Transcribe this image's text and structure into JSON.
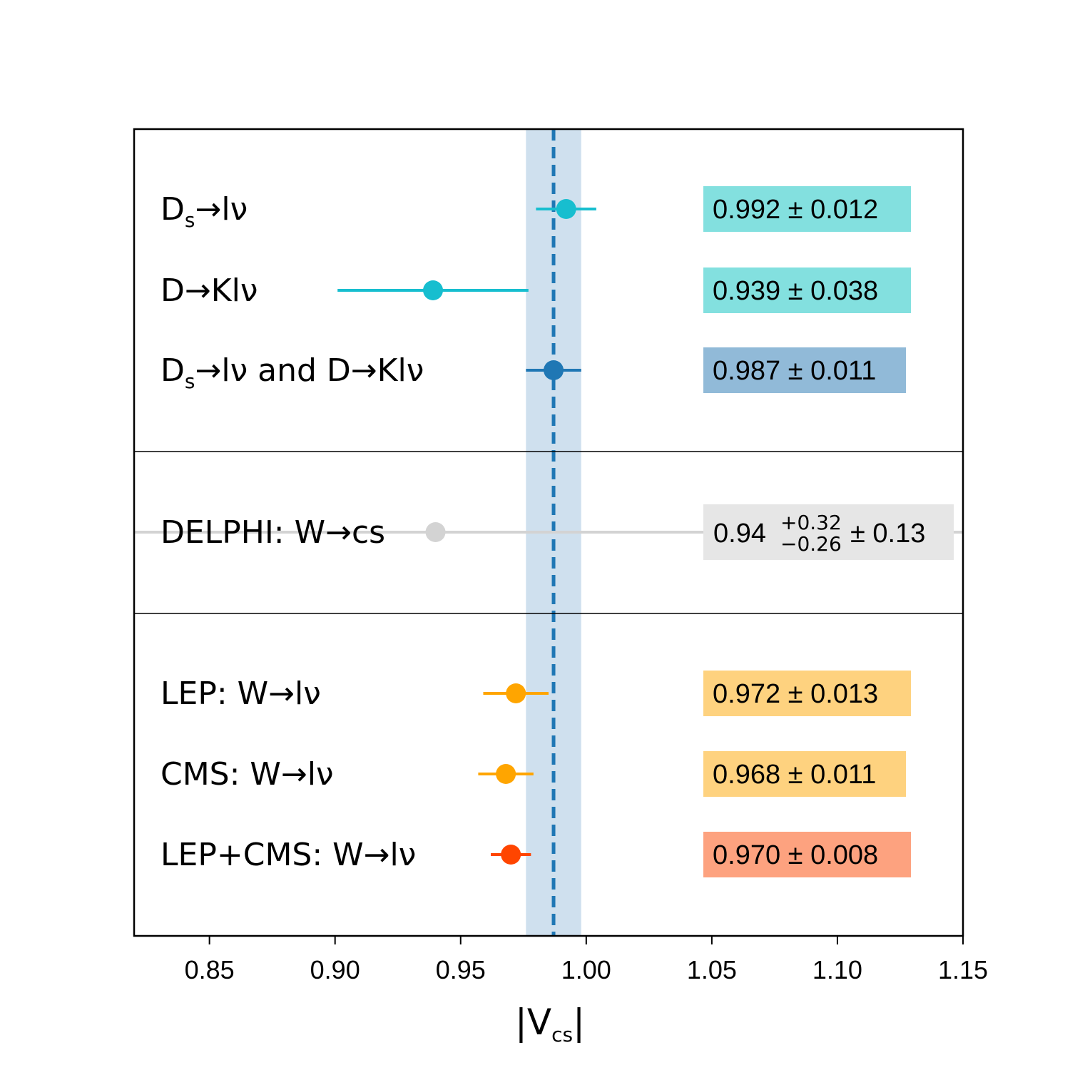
{
  "chart_data": {
    "type": "scatter",
    "xlabel": "|V",
    "xlabel_sub": "cs",
    "xlabel_end": "|",
    "xlim": [
      0.82,
      1.15
    ],
    "xticks": [
      "0.85",
      "0.90",
      "0.95",
      "1.00",
      "1.05",
      "1.10",
      "1.15"
    ],
    "reference": {
      "value": 0.987,
      "band": [
        0.976,
        0.998
      ],
      "line_color": "#1f77b4",
      "band_color": "#cfe0ee"
    },
    "points": [
      {
        "group": 0,
        "label": "D",
        "label_sub": "s",
        "label_rest": "→lν",
        "x": 0.992,
        "err": 0.012,
        "color": "#17becf",
        "value_text": "0.992 ± 0.012",
        "box_color": "#83e0df"
      },
      {
        "group": 0,
        "label": "D→Klν",
        "label_sub": "",
        "label_rest": "",
        "x": 0.939,
        "err": 0.038,
        "color": "#17becf",
        "value_text": "0.939 ± 0.038",
        "box_color": "#83e0df"
      },
      {
        "group": 0,
        "label": "D",
        "label_sub": "s",
        "label_rest": "→lν and D→Klν",
        "x": 0.987,
        "err": 0.011,
        "color": "#1f77b4",
        "value_text": "0.987 ± 0.011",
        "box_color": "#91bad8"
      },
      {
        "group": 1,
        "label": "DELPHI: W→cs",
        "label_sub": "",
        "label_rest": "",
        "x": 0.94,
        "err_plus": 0.32,
        "err_minus": 0.26,
        "color": "#d3d3d3",
        "value_text": "0.94",
        "value_sup": "+0.32",
        "value_sub": "−0.26",
        "value_tail": "± 0.13",
        "box_color": "#e6e6e6"
      },
      {
        "group": 2,
        "label": "LEP: W→lν",
        "label_sub": "",
        "label_rest": "",
        "x": 0.972,
        "err": 0.013,
        "color": "#ffa500",
        "value_text": "0.972 ± 0.013",
        "box_color": "#fed27f"
      },
      {
        "group": 2,
        "label": "CMS: W→lν",
        "label_sub": "",
        "label_rest": "",
        "x": 0.968,
        "err": 0.011,
        "color": "#ffa500",
        "value_text": "0.968 ± 0.011",
        "box_color": "#fed27f"
      },
      {
        "group": 2,
        "label": "LEP+CMS: W→lν",
        "label_sub": "",
        "label_rest": "",
        "x": 0.97,
        "err": 0.008,
        "color": "#ff4500",
        "value_text": "0.970 ± 0.008",
        "box_color": "#fda27f"
      }
    ],
    "grid": false
  }
}
